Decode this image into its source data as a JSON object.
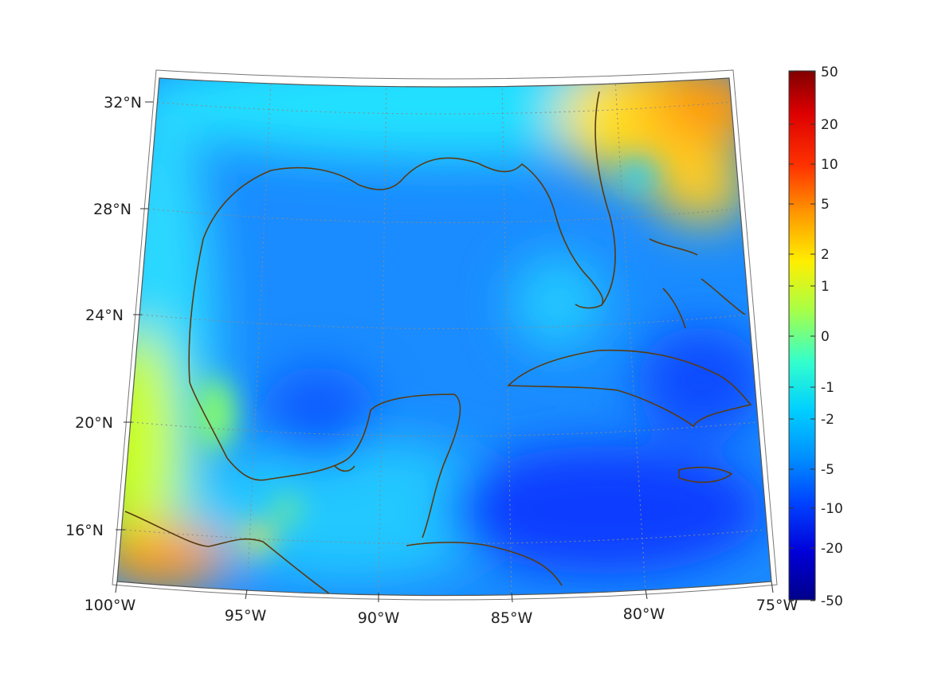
{
  "map": {
    "projection": "lambert-conic",
    "lon_range": [
      -100,
      -75
    ],
    "lat_range": [
      14,
      33
    ],
    "lon_labels": [
      "100°W",
      "95°W",
      "90°W",
      "85°W",
      "80°W",
      "75°W"
    ],
    "lat_labels": [
      "16°N",
      "20°N",
      "24°N",
      "28°N",
      "32°N"
    ],
    "coastline_color": "#5a3a10",
    "grid_style": "dotted"
  },
  "colorbar": {
    "colormap": "jet",
    "scale": "symmetric-log",
    "tick_labels": [
      "50",
      "20",
      "10",
      "5",
      "2",
      "1",
      "0",
      "-1",
      "-2",
      "-5",
      "-10",
      "-20",
      "-50"
    ],
    "range": [
      -50,
      50
    ]
  },
  "field": {
    "description_values": {
      "gulf_interior": "-5",
      "caribbean_south": "-10",
      "atlantic_northeast": "5",
      "mexico_pacific_southwest": "5",
      "mexico_inland_west": "1"
    }
  }
}
